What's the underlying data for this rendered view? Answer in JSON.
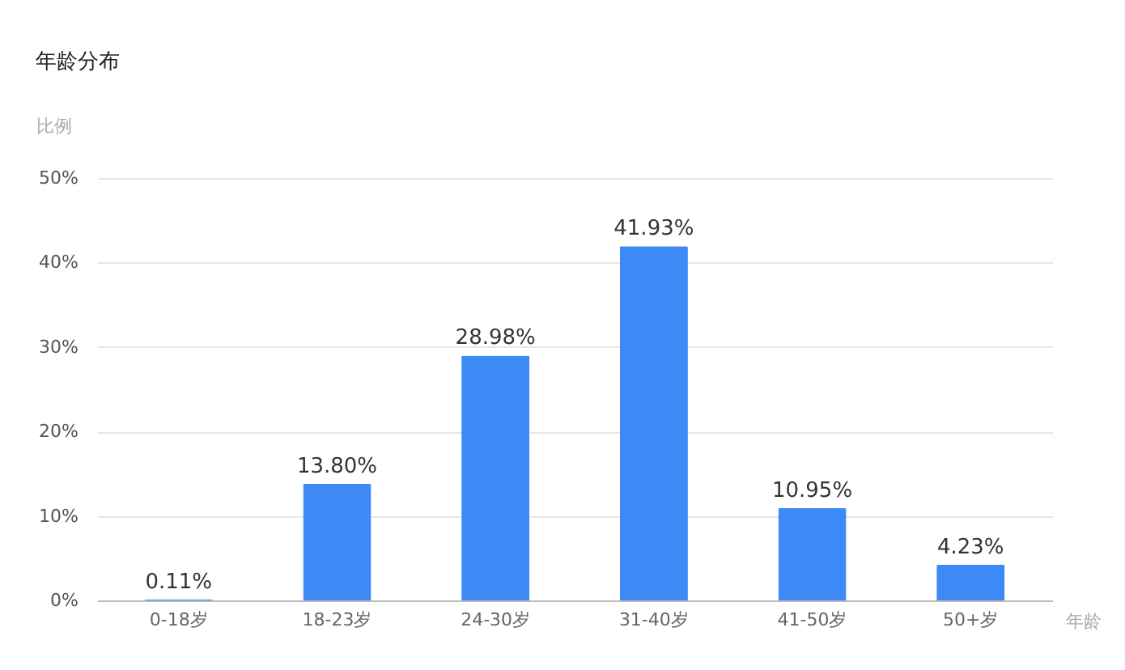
{
  "chart_data": {
    "type": "bar",
    "title": "年龄分布",
    "ylabel": "比例",
    "xlabel": "年龄",
    "categories": [
      "0-18岁",
      "18-23岁",
      "24-30岁",
      "31-40岁",
      "41-50岁",
      "50+岁"
    ],
    "values": [
      0.11,
      13.8,
      28.98,
      41.93,
      10.95,
      4.23
    ],
    "value_labels": [
      "0.11%",
      "13.80%",
      "28.98%",
      "41.93%",
      "10.95%",
      "4.23%"
    ],
    "color": "#3d8af7",
    "ylim": [
      0,
      50
    ],
    "yticks": [
      {
        "value": 0,
        "label": "0%"
      },
      {
        "value": 10,
        "label": "10%"
      },
      {
        "value": 20,
        "label": "20%"
      },
      {
        "value": 30,
        "label": "30%"
      },
      {
        "value": 40,
        "label": "40%"
      },
      {
        "value": 50,
        "label": "50%"
      }
    ],
    "grid": "y"
  }
}
